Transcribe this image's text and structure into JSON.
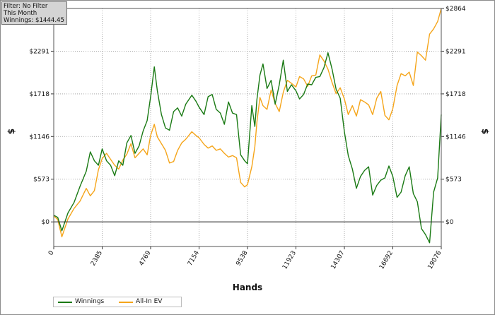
{
  "filter_box": {
    "line1": "Filter: No Filter",
    "line2": "This Month",
    "line3": "Winnings: $1444.45"
  },
  "chart_data": {
    "type": "line",
    "xlabel": "Hands",
    "ylabel": "$",
    "x_ticks": [
      0,
      2385,
      4769,
      7154,
      9538,
      11923,
      14307,
      16692,
      19076
    ],
    "y_ticks": [
      "$0",
      "$573",
      "$1146",
      "$1718",
      "$2291",
      "$2864"
    ],
    "y_tick_values": [
      0,
      573,
      1146,
      1718,
      2291,
      2864
    ],
    "xlim": [
      0,
      19076
    ],
    "ylim": [
      -330,
      2864
    ],
    "grid": true,
    "legend_position": "bottom-left",
    "series": [
      {
        "name": "Winnings",
        "color": "#1a7a14",
        "x": [
          0,
          200,
          400,
          700,
          1000,
          1300,
          1600,
          1800,
          2000,
          2200,
          2385,
          2600,
          2800,
          3000,
          3200,
          3400,
          3600,
          3800,
          4000,
          4200,
          4400,
          4600,
          4769,
          4950,
          5100,
          5300,
          5500,
          5700,
          5900,
          6100,
          6300,
          6500,
          6800,
          7000,
          7154,
          7400,
          7600,
          7800,
          8000,
          8200,
          8400,
          8600,
          8800,
          9000,
          9200,
          9400,
          9538,
          9750,
          9900,
          10000,
          10150,
          10300,
          10500,
          10700,
          10900,
          11100,
          11300,
          11500,
          11700,
          11923,
          12100,
          12300,
          12500,
          12700,
          12900,
          13100,
          13300,
          13500,
          13700,
          13900,
          14100,
          14307,
          14500,
          14700,
          14900,
          15100,
          15300,
          15500,
          15700,
          15900,
          16100,
          16300,
          16500,
          16692,
          16900,
          17100,
          17300,
          17500,
          17700,
          17900,
          18100,
          18300,
          18500,
          18700,
          18900,
          19076
        ],
        "y": [
          90,
          60,
          -120,
          120,
          260,
          480,
          680,
          940,
          820,
          760,
          980,
          820,
          760,
          620,
          820,
          760,
          1060,
          1160,
          920,
          1020,
          1220,
          1360,
          1680,
          2080,
          1760,
          1440,
          1260,
          1230,
          1480,
          1530,
          1420,
          1580,
          1700,
          1620,
          1540,
          1440,
          1680,
          1710,
          1510,
          1460,
          1310,
          1610,
          1460,
          1440,
          900,
          820,
          780,
          1560,
          1280,
          1640,
          1970,
          2120,
          1790,
          1900,
          1580,
          1840,
          2170,
          1750,
          1840,
          1760,
          1650,
          1710,
          1850,
          1840,
          1940,
          1950,
          2070,
          2270,
          2050,
          1780,
          1660,
          1210,
          890,
          710,
          450,
          610,
          690,
          740,
          360,
          490,
          560,
          590,
          750,
          610,
          330,
          400,
          620,
          740,
          380,
          270,
          -90,
          -170,
          -280,
          400,
          590,
          1440
        ]
      },
      {
        "name": "All-In EV",
        "color": "#f5a51a",
        "x": [
          0,
          200,
          400,
          700,
          1000,
          1300,
          1600,
          1800,
          2000,
          2200,
          2385,
          2600,
          2800,
          3000,
          3200,
          3400,
          3600,
          3800,
          4000,
          4200,
          4400,
          4600,
          4769,
          4950,
          5100,
          5300,
          5500,
          5700,
          5900,
          6100,
          6300,
          6500,
          6800,
          7000,
          7154,
          7400,
          7600,
          7800,
          8000,
          8200,
          8400,
          8600,
          8800,
          9000,
          9200,
          9400,
          9538,
          9750,
          9900,
          10000,
          10150,
          10300,
          10500,
          10700,
          10900,
          11100,
          11300,
          11500,
          11700,
          11923,
          12100,
          12300,
          12500,
          12700,
          12900,
          13100,
          13300,
          13500,
          13700,
          13900,
          14100,
          14307,
          14500,
          14700,
          14900,
          15100,
          15300,
          15500,
          15700,
          15900,
          16100,
          16300,
          16500,
          16692,
          16900,
          17100,
          17300,
          17500,
          17700,
          17900,
          18100,
          18300,
          18500,
          18700,
          18900,
          19076
        ],
        "y": [
          80,
          30,
          -200,
          40,
          180,
          280,
          450,
          350,
          420,
          700,
          850,
          920,
          840,
          760,
          710,
          830,
          910,
          1050,
          860,
          920,
          980,
          900,
          1160,
          1310,
          1140,
          1050,
          960,
          790,
          810,
          960,
          1060,
          1110,
          1210,
          1160,
          1130,
          1040,
          990,
          1020,
          960,
          980,
          920,
          870,
          890,
          860,
          530,
          470,
          500,
          740,
          1010,
          1340,
          1670,
          1560,
          1510,
          1770,
          1590,
          1480,
          1740,
          1900,
          1860,
          1810,
          1950,
          1920,
          1820,
          1960,
          1970,
          2240,
          2160,
          2050,
          1870,
          1720,
          1800,
          1650,
          1440,
          1560,
          1420,
          1640,
          1610,
          1570,
          1440,
          1660,
          1750,
          1430,
          1370,
          1520,
          1830,
          1990,
          1960,
          2010,
          1830,
          2280,
          2230,
          2170,
          2520,
          2590,
          2690,
          2864
        ]
      }
    ]
  }
}
